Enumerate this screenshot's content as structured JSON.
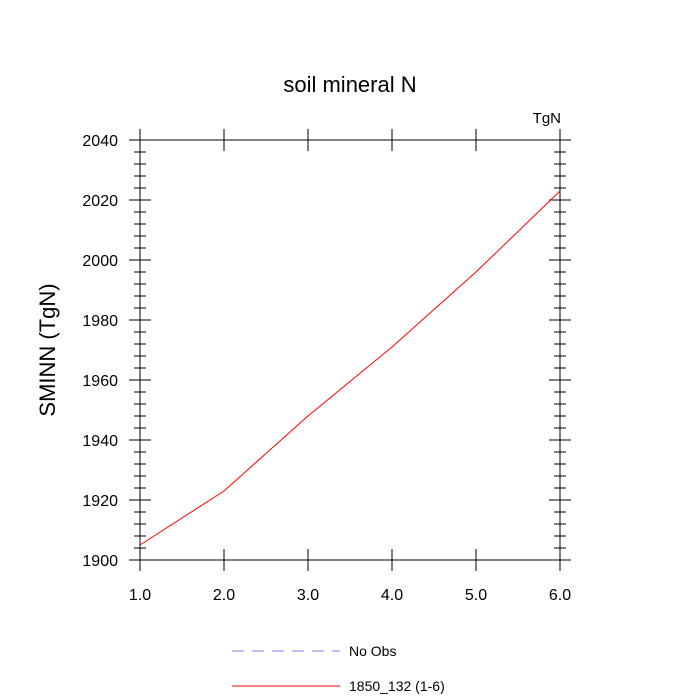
{
  "chart_data": {
    "type": "line",
    "title": "soil mineral N",
    "units_label": "TgN",
    "xlabel": "",
    "ylabel": "SMINN  (TgN)",
    "xlim": [
      1.0,
      6.0
    ],
    "ylim": [
      1900,
      2040
    ],
    "x_ticks": [
      "1.0",
      "2.0",
      "3.0",
      "4.0",
      "5.0",
      "6.0"
    ],
    "y_ticks": [
      "1900",
      "1920",
      "1940",
      "1960",
      "1980",
      "2000",
      "2020",
      "2040"
    ],
    "grid": false,
    "legend_position": "bottom",
    "series": [
      {
        "name": "No Obs",
        "color": "#7f7fff",
        "style": "dashed",
        "x": [],
        "y": []
      },
      {
        "name": "1850_132 (1-6)",
        "color": "#ff0000",
        "style": "solid",
        "x": [
          1,
          2,
          3,
          4,
          5,
          6
        ],
        "y": [
          1905,
          1923,
          1948,
          1971,
          1996,
          2023
        ]
      }
    ]
  }
}
